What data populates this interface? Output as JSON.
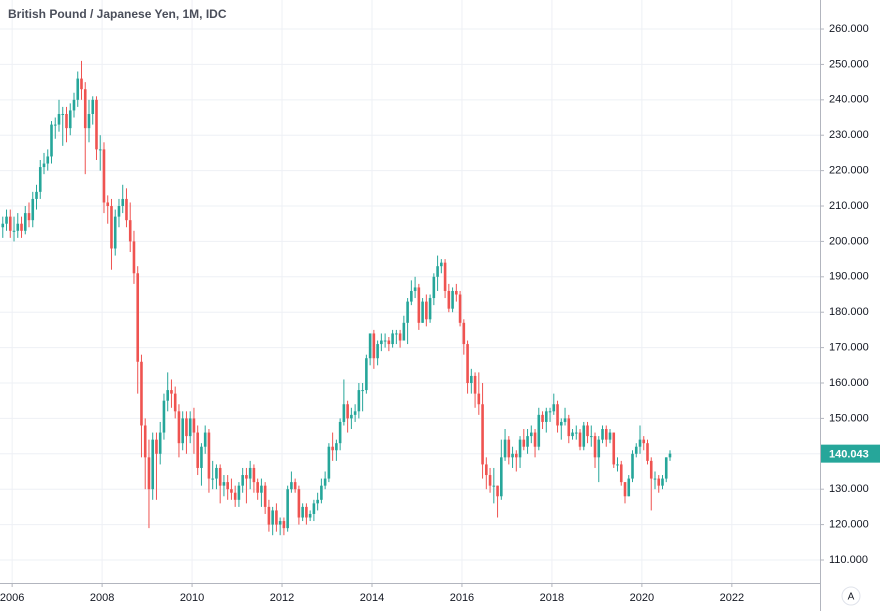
{
  "chart_data": {
    "type": "candlestick",
    "title": "British Pound / Japanese Yen, 1M, IDC",
    "x": [
      "2005-10",
      "2005-11",
      "2005-12",
      "2006-01",
      "2006-02",
      "2006-03",
      "2006-04",
      "2006-05",
      "2006-06",
      "2006-07",
      "2006-08",
      "2006-09",
      "2006-10",
      "2006-11",
      "2006-12",
      "2007-01",
      "2007-02",
      "2007-03",
      "2007-04",
      "2007-05",
      "2007-06",
      "2007-07",
      "2007-08",
      "2007-09",
      "2007-10",
      "2007-11",
      "2007-12",
      "2008-01",
      "2008-02",
      "2008-03",
      "2008-04",
      "2008-05",
      "2008-06",
      "2008-07",
      "2008-08",
      "2008-09",
      "2008-10",
      "2008-11",
      "2008-12",
      "2009-01",
      "2009-02",
      "2009-03",
      "2009-04",
      "2009-05",
      "2009-06",
      "2009-07",
      "2009-08",
      "2009-09",
      "2009-10",
      "2009-11",
      "2009-12",
      "2010-01",
      "2010-02",
      "2010-03",
      "2010-04",
      "2010-05",
      "2010-06",
      "2010-07",
      "2010-08",
      "2010-09",
      "2010-10",
      "2010-11",
      "2010-12",
      "2011-01",
      "2011-02",
      "2011-03",
      "2011-04",
      "2011-05",
      "2011-06",
      "2011-07",
      "2011-08",
      "2011-09",
      "2011-10",
      "2011-11",
      "2011-12",
      "2012-01",
      "2012-02",
      "2012-03",
      "2012-04",
      "2012-05",
      "2012-06",
      "2012-07",
      "2012-08",
      "2012-09",
      "2012-10",
      "2012-11",
      "2012-12",
      "2013-01",
      "2013-02",
      "2013-03",
      "2013-04",
      "2013-05",
      "2013-06",
      "2013-07",
      "2013-08",
      "2013-09",
      "2013-10",
      "2013-11",
      "2013-12",
      "2014-01",
      "2014-02",
      "2014-03",
      "2014-04",
      "2014-05",
      "2014-06",
      "2014-07",
      "2014-08",
      "2014-09",
      "2014-10",
      "2014-11",
      "2014-12",
      "2015-01",
      "2015-02",
      "2015-03",
      "2015-04",
      "2015-05",
      "2015-06",
      "2015-07",
      "2015-08",
      "2015-09",
      "2015-10",
      "2015-11",
      "2015-12",
      "2016-01",
      "2016-02",
      "2016-03",
      "2016-04",
      "2016-05",
      "2016-06",
      "2016-07",
      "2016-08",
      "2016-09",
      "2016-10",
      "2016-11",
      "2016-12",
      "2017-01",
      "2017-02",
      "2017-03",
      "2017-04",
      "2017-05",
      "2017-06",
      "2017-07",
      "2017-08",
      "2017-09",
      "2017-10",
      "2017-11",
      "2017-12",
      "2018-01",
      "2018-02",
      "2018-03",
      "2018-04",
      "2018-05",
      "2018-06",
      "2018-07",
      "2018-08",
      "2018-09",
      "2018-10",
      "2018-11",
      "2018-12",
      "2019-01",
      "2019-02",
      "2019-03",
      "2019-04",
      "2019-05",
      "2019-06",
      "2019-07",
      "2019-08",
      "2019-09",
      "2019-10",
      "2019-11",
      "2019-12",
      "2020-01",
      "2020-02",
      "2020-03",
      "2020-04",
      "2020-05",
      "2020-06",
      "2020-07",
      "2020-08"
    ],
    "open": [
      204,
      205,
      207,
      203,
      203,
      205,
      203,
      208,
      206,
      212,
      214,
      221,
      222,
      224,
      233,
      233,
      236,
      236,
      232,
      237,
      240,
      246,
      243,
      232,
      236,
      240,
      226,
      226,
      211,
      210,
      198,
      207,
      210,
      212,
      206,
      200,
      191,
      166,
      148,
      139,
      130,
      144,
      140,
      146,
      155,
      158,
      157,
      152,
      143,
      150,
      145,
      150,
      146,
      136,
      142,
      146,
      133,
      133,
      136,
      131,
      132,
      130,
      129,
      127,
      131,
      134,
      133,
      136,
      132,
      129,
      131,
      125,
      120,
      124,
      120,
      121,
      119,
      130,
      132,
      130,
      122,
      125,
      122,
      123,
      126,
      127,
      131,
      133,
      142,
      141,
      143,
      149,
      154,
      150,
      151,
      152,
      158,
      158,
      167,
      174,
      167,
      171,
      172,
      172,
      171,
      174,
      174,
      172,
      177,
      183,
      186,
      187,
      177,
      183,
      178,
      184,
      190,
      193,
      194,
      186,
      181,
      186,
      185,
      177,
      171,
      160,
      162,
      157,
      154,
      137,
      134,
      131,
      131,
      128,
      139,
      144,
      139,
      140,
      139,
      144,
      142,
      145,
      146,
      142,
      151,
      149,
      152,
      152,
      154,
      148,
      149,
      150,
      145,
      146,
      146,
      142,
      148,
      145,
      145,
      139,
      144,
      147,
      144,
      146,
      137,
      137,
      132,
      128,
      133,
      140,
      142,
      144,
      143,
      138,
      133,
      133,
      131,
      133,
      139
    ],
    "high": [
      207,
      209,
      209,
      207,
      208,
      207,
      210,
      211,
      214,
      216,
      223,
      225,
      226,
      234,
      235,
      240,
      238,
      238,
      239,
      242,
      248,
      251,
      245,
      240,
      241,
      241,
      230,
      228,
      213,
      212,
      209,
      212,
      216,
      215,
      211,
      203,
      193,
      168,
      150,
      144,
      146,
      146,
      149,
      157,
      163,
      161,
      159,
      154,
      152,
      152,
      152,
      153,
      148,
      143,
      148,
      147,
      138,
      137,
      137,
      134,
      134,
      133,
      131,
      132,
      136,
      136,
      138,
      137,
      133,
      133,
      132,
      127,
      125,
      126,
      122,
      122,
      131,
      135,
      133,
      131,
      126,
      126,
      124,
      127,
      129,
      133,
      135,
      143,
      146,
      144,
      150,
      161,
      155,
      153,
      154,
      160,
      160,
      168,
      174,
      175,
      172,
      174,
      174,
      173,
      175,
      175,
      175,
      179,
      184,
      189,
      190,
      188,
      184,
      185,
      185,
      191,
      196,
      195,
      195,
      188,
      187,
      188,
      186,
      178,
      172,
      164,
      163,
      163,
      160,
      139,
      136,
      136,
      131,
      144,
      147,
      145,
      142,
      141,
      145,
      147,
      147,
      148,
      147,
      153,
      152,
      153,
      153,
      157,
      155,
      150,
      153,
      151,
      147,
      148,
      147,
      149,
      149,
      148,
      146,
      145,
      148,
      148,
      147,
      146,
      139,
      138,
      132,
      134,
      141,
      143,
      148,
      145,
      144,
      139,
      135,
      134,
      134,
      139,
      141
    ],
    "low": [
      201,
      203,
      201,
      200,
      201,
      201,
      202,
      204,
      204,
      209,
      212,
      219,
      220,
      222,
      229,
      231,
      227,
      228,
      230,
      235,
      238,
      240,
      219,
      228,
      233,
      223,
      220,
      208,
      205,
      192,
      196,
      204,
      208,
      204,
      197,
      188,
      157,
      139,
      130,
      119,
      127,
      127,
      137,
      144,
      152,
      153,
      150,
      139,
      141,
      140,
      143,
      140,
      134,
      131,
      140,
      129,
      130,
      130,
      126,
      128,
      127,
      127,
      125,
      125,
      129,
      126,
      130,
      129,
      127,
      125,
      123,
      118,
      117,
      118,
      117,
      117,
      118,
      129,
      129,
      120,
      121,
      120,
      121,
      121,
      124,
      126,
      130,
      132,
      138,
      138,
      141,
      148,
      146,
      147,
      149,
      150,
      152,
      157,
      165,
      164,
      165,
      169,
      170,
      169,
      170,
      171,
      170,
      172,
      171,
      182,
      184,
      175,
      177,
      176,
      177,
      182,
      186,
      191,
      184,
      180,
      180,
      183,
      176,
      168,
      157,
      157,
      153,
      151,
      133,
      130,
      129,
      126,
      122,
      127,
      138,
      137,
      136,
      135,
      136,
      141,
      140,
      143,
      139,
      141,
      147,
      146,
      149,
      151,
      146,
      144,
      148,
      143,
      144,
      144,
      141,
      141,
      143,
      142,
      136,
      132,
      143,
      142,
      143,
      136,
      135,
      131,
      126,
      128,
      132,
      139,
      140,
      141,
      137,
      124,
      130,
      129,
      130,
      132,
      138
    ],
    "close": [
      205,
      207,
      203,
      203,
      205,
      203,
      208,
      206,
      212,
      214,
      221,
      222,
      224,
      233,
      233,
      236,
      236,
      232,
      237,
      240,
      246,
      243,
      232,
      236,
      240,
      226,
      226,
      211,
      210,
      198,
      207,
      210,
      212,
      206,
      200,
      191,
      166,
      148,
      139,
      130,
      144,
      140,
      146,
      155,
      158,
      157,
      152,
      143,
      150,
      145,
      150,
      146,
      136,
      142,
      146,
      133,
      133,
      136,
      131,
      132,
      130,
      129,
      127,
      131,
      134,
      133,
      136,
      132,
      129,
      131,
      125,
      120,
      124,
      120,
      121,
      119,
      130,
      132,
      130,
      122,
      125,
      122,
      123,
      126,
      127,
      131,
      133,
      142,
      141,
      143,
      149,
      154,
      150,
      151,
      152,
      158,
      158,
      167,
      174,
      167,
      171,
      172,
      172,
      171,
      174,
      174,
      172,
      177,
      183,
      186,
      187,
      177,
      183,
      178,
      184,
      190,
      193,
      194,
      186,
      181,
      186,
      185,
      177,
      171,
      160,
      162,
      157,
      154,
      137,
      134,
      131,
      131,
      128,
      139,
      144,
      139,
      140,
      139,
      144,
      142,
      145,
      146,
      142,
      151,
      149,
      152,
      152,
      154,
      148,
      149,
      150,
      145,
      146,
      146,
      142,
      148,
      145,
      145,
      139,
      144,
      147,
      144,
      146,
      137,
      137,
      132,
      128,
      133,
      140,
      142,
      144,
      143,
      138,
      133,
      133,
      131,
      133,
      139,
      140.043
    ],
    "up_color": "#26a69a",
    "down_color": "#ef5350",
    "xlim": [
      2005.73,
      2023.96
    ],
    "xticks": [
      2006,
      2008,
      2010,
      2012,
      2014,
      2016,
      2018,
      2020,
      2022
    ],
    "ylim": [
      103.5,
      268.2
    ],
    "yticks": [
      {
        "value": 110,
        "label": "110.000"
      },
      {
        "value": 120,
        "label": "120.000"
      },
      {
        "value": 130,
        "label": "130.000"
      },
      {
        "value": 140,
        "label": "140.000"
      },
      {
        "value": 150,
        "label": "150.000"
      },
      {
        "value": 160,
        "label": "160.000"
      },
      {
        "value": 170,
        "label": "170.000"
      },
      {
        "value": 180,
        "label": "180.000"
      },
      {
        "value": 190,
        "label": "190.000"
      },
      {
        "value": 200,
        "label": "200.000"
      },
      {
        "value": 210,
        "label": "210.000"
      },
      {
        "value": 220,
        "label": "220.000"
      },
      {
        "value": 230,
        "label": "230.000"
      },
      {
        "value": 240,
        "label": "240.000"
      },
      {
        "value": 250,
        "label": "250.000"
      },
      {
        "value": 260,
        "label": "260.000"
      }
    ],
    "grid": true,
    "auto_scale_label": "A"
  }
}
